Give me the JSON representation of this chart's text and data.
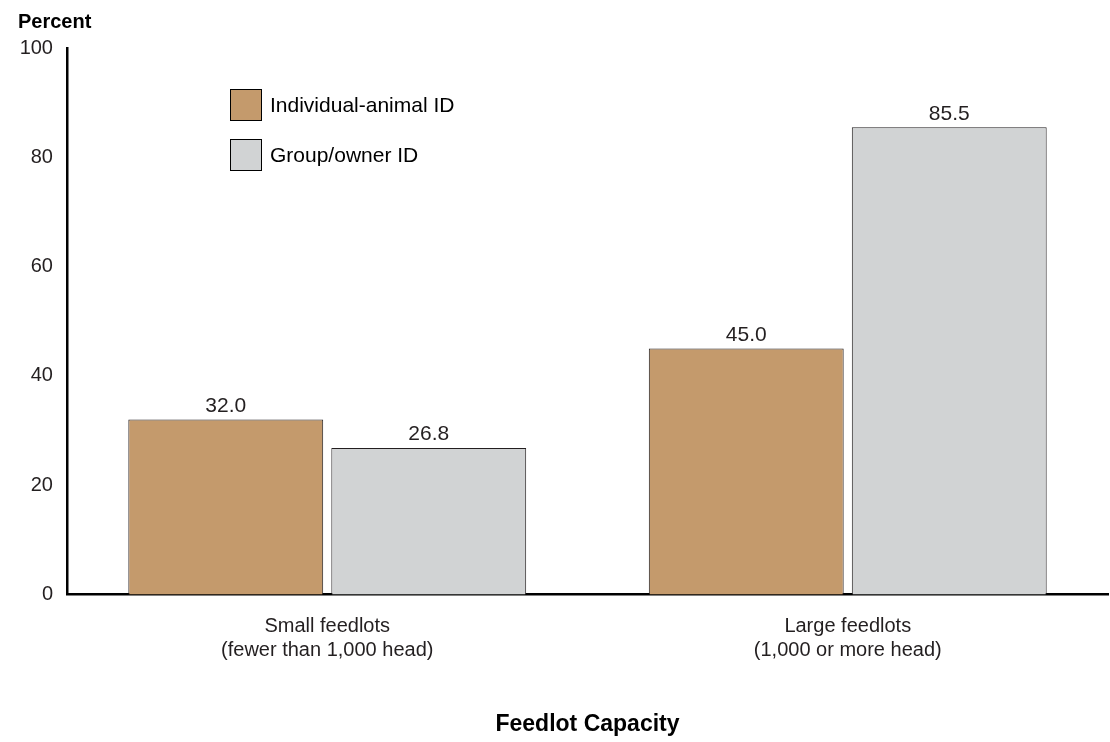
{
  "chart_data": {
    "type": "bar",
    "xlabel": "Feedlot Capacity",
    "ylabel": "Percent",
    "categories": [
      "Small feedlots\n(fewer than 1,000 head)",
      "Large feedlots\n(1,000 or more head)"
    ],
    "series": [
      {
        "name": "Individual-animal ID",
        "color": "#c49a6c",
        "values": [
          32.0,
          45.0
        ],
        "value_labels": [
          "32.0",
          "45.0"
        ]
      },
      {
        "name": "Group/owner ID",
        "color": "#d1d3d4",
        "values": [
          26.8,
          85.5
        ],
        "value_labels": [
          "26.8",
          "85.5"
        ]
      }
    ],
    "ylim": [
      0,
      100
    ],
    "yticks": [
      0,
      20,
      40,
      60,
      80,
      100
    ],
    "grid": false,
    "legend": "top left"
  }
}
